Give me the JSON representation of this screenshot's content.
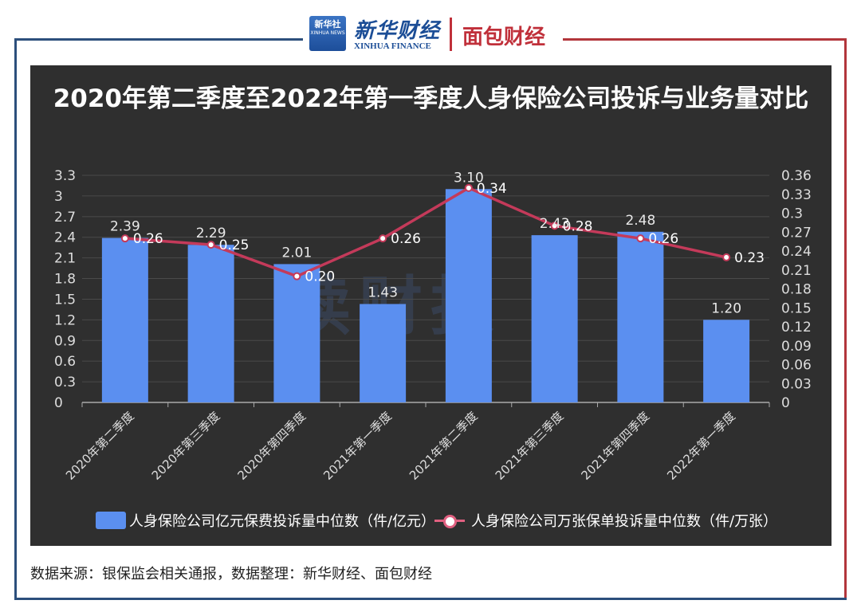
{
  "header": {
    "xinhua_badge": "新华社",
    "xinhua_badge_sub": "XINHUA NEWS",
    "xinhua_cn": "新华财经",
    "xinhua_en": "XINHUA FINANCE",
    "mianbao": "面包财经"
  },
  "colors": {
    "panel_bg": "#2f2f2f",
    "bar": "#5b8ff0",
    "line": "#c43a5a",
    "frame_left": "#2c4f7c",
    "frame_right": "#b2363b"
  },
  "watermark": "读财报",
  "chart_data": {
    "type": "bar",
    "title": "2020年第二季度至2022年第一季度人身保险公司投诉与业务量对比",
    "categories": [
      "2020年第二季度",
      "2020年第三季度",
      "2020年第四季度",
      "2021年第一季度",
      "2021年第二季度",
      "2021年第三季度",
      "2021年第四季度",
      "2022年第一季度"
    ],
    "series": [
      {
        "name": "人身保险公司亿元保费投诉量中位数（件/亿元）",
        "type": "bar",
        "axis": "left",
        "values": [
          2.39,
          2.29,
          2.01,
          1.43,
          3.1,
          2.43,
          2.48,
          1.2
        ],
        "labels": [
          "2.39",
          "2.29",
          "2.01",
          "1.43",
          "3.10",
          "2.43",
          "2.48",
          "1.20"
        ]
      },
      {
        "name": "人身保险公司万张保单投诉量中位数（件/万张）",
        "type": "line",
        "axis": "right",
        "values": [
          0.26,
          0.25,
          0.2,
          0.26,
          0.34,
          0.28,
          0.26,
          0.23
        ],
        "labels": [
          "0.26",
          "0.25",
          "0.20",
          "0.26",
          "0.34",
          "0.28",
          "0.26",
          "0.23"
        ]
      }
    ],
    "y_left": {
      "min": 0,
      "max": 3.3,
      "ticks": [
        "0",
        "0.3",
        "0.6",
        "0.9",
        "1.2",
        "1.5",
        "1.8",
        "2.1",
        "2.4",
        "2.7",
        "3",
        "3.3"
      ]
    },
    "y_right": {
      "min": 0,
      "max": 0.36,
      "ticks": [
        "0",
        "0.03",
        "0.06",
        "0.09",
        "0.12",
        "0.15",
        "0.18",
        "0.21",
        "0.24",
        "0.27",
        "0.3",
        "0.33",
        "0.36"
      ]
    },
    "grid": true,
    "legend": "bottom"
  },
  "source": "数据来源：银保监会相关通报，数据整理：新华财经、面包财经"
}
